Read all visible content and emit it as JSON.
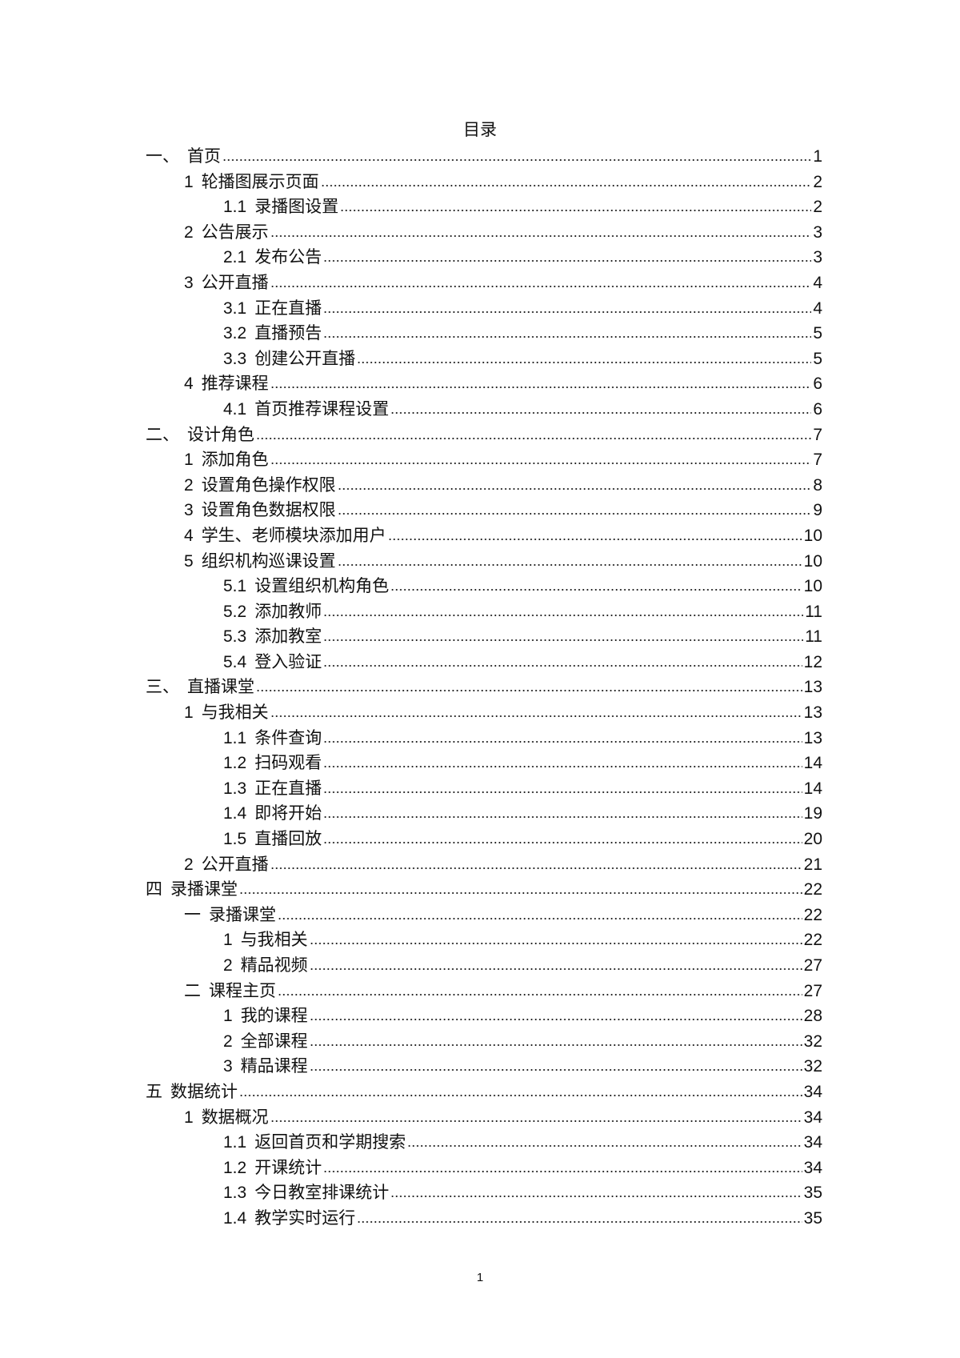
{
  "title": "目录",
  "entries": [
    {
      "level": 0,
      "num": "一、",
      "text": "首页",
      "page": "1"
    },
    {
      "level": 1,
      "num": "1",
      "text": "轮播图展示页面",
      "page": "2"
    },
    {
      "level": 2,
      "num": "1.1",
      "text": "录播图设置",
      "page": "2"
    },
    {
      "level": 1,
      "num": "2",
      "text": "公告展示",
      "page": "3"
    },
    {
      "level": 2,
      "num": "2.1",
      "text": "发布公告",
      "page": "3"
    },
    {
      "level": 1,
      "num": "3",
      "text": "公开直播",
      "page": "4"
    },
    {
      "level": 2,
      "num": "3.1",
      "text": "正在直播",
      "page": "4"
    },
    {
      "level": 2,
      "num": "3.2",
      "text": "直播预告",
      "page": "5"
    },
    {
      "level": 2,
      "num": "3.3",
      "text": "创建公开直播",
      "page": "5"
    },
    {
      "level": 1,
      "num": "4",
      "text": "推荐课程",
      "page": "6"
    },
    {
      "level": 2,
      "num": "4.1",
      "text": "首页推荐课程设置",
      "page": "6"
    },
    {
      "level": 0,
      "num": "二、",
      "text": "设计角色",
      "page": "7"
    },
    {
      "level": 1,
      "num": "1",
      "text": "添加角色",
      "page": "7"
    },
    {
      "level": 1,
      "num": "2",
      "text": "设置角色操作权限",
      "page": "8"
    },
    {
      "level": 1,
      "num": "3",
      "text": "设置角色数据权限",
      "page": "9"
    },
    {
      "level": 1,
      "num": "4",
      "text": "学生、老师模块添加用户",
      "page": "10"
    },
    {
      "level": 1,
      "num": "5",
      "text": "组织机构巡课设置",
      "page": "10"
    },
    {
      "level": 2,
      "num": "5.1",
      "text": "设置组织机构角色",
      "page": "10"
    },
    {
      "level": 2,
      "num": "5.2",
      "text": "添加教师",
      "page": "11"
    },
    {
      "level": 2,
      "num": "5.3",
      "text": "添加教室",
      "page": "11"
    },
    {
      "level": 2,
      "num": "5.4",
      "text": "登入验证",
      "page": "12"
    },
    {
      "level": 0,
      "num": "三、",
      "text": "直播课堂",
      "page": "13"
    },
    {
      "level": 1,
      "num": "1",
      "text": "与我相关",
      "page": "13"
    },
    {
      "level": 2,
      "num": "1.1",
      "text": "条件查询",
      "page": "13"
    },
    {
      "level": 2,
      "num": "1.2",
      "text": "扫码观看",
      "page": "14"
    },
    {
      "level": 2,
      "num": "1.3",
      "text": "正在直播",
      "page": "14"
    },
    {
      "level": 2,
      "num": "1.4",
      "text": "即将开始",
      "page": "19"
    },
    {
      "level": 2,
      "num": "1.5",
      "text": "直播回放",
      "page": "20"
    },
    {
      "level": 1,
      "num": "2",
      "text": "公开直播",
      "page": "21"
    },
    {
      "level": 0,
      "num": "四",
      "text": "录播课堂",
      "page": "22"
    },
    {
      "level": 1,
      "num": "一",
      "text": "录播课堂",
      "page": "22"
    },
    {
      "level": 2,
      "num": "1",
      "text": "与我相关",
      "page": "22"
    },
    {
      "level": 2,
      "num": "2",
      "text": "精品视频",
      "page": "27"
    },
    {
      "level": 1,
      "num": "二",
      "text": "课程主页",
      "page": "27"
    },
    {
      "level": 2,
      "num": "1",
      "text": "我的课程",
      "page": "28"
    },
    {
      "level": 2,
      "num": "2",
      "text": "全部课程",
      "page": "32"
    },
    {
      "level": 2,
      "num": "3",
      "text": "精品课程",
      "page": "32"
    },
    {
      "level": 0,
      "num": "五",
      "text": "数据统计",
      "page": "34"
    },
    {
      "level": 1,
      "num": "1",
      "text": "数据概况",
      "page": "34"
    },
    {
      "level": 2,
      "num": "1.1",
      "text": "返回首页和学期搜索",
      "page": "34"
    },
    {
      "level": 2,
      "num": "1.2",
      "text": "开课统计",
      "page": "34"
    },
    {
      "level": 2,
      "num": "1.3",
      "text": "今日教室排课统计",
      "page": "35"
    },
    {
      "level": 2,
      "num": "1.4",
      "text": "教学实时运行",
      "page": "35"
    }
  ],
  "footer": {
    "page_number": "1"
  }
}
